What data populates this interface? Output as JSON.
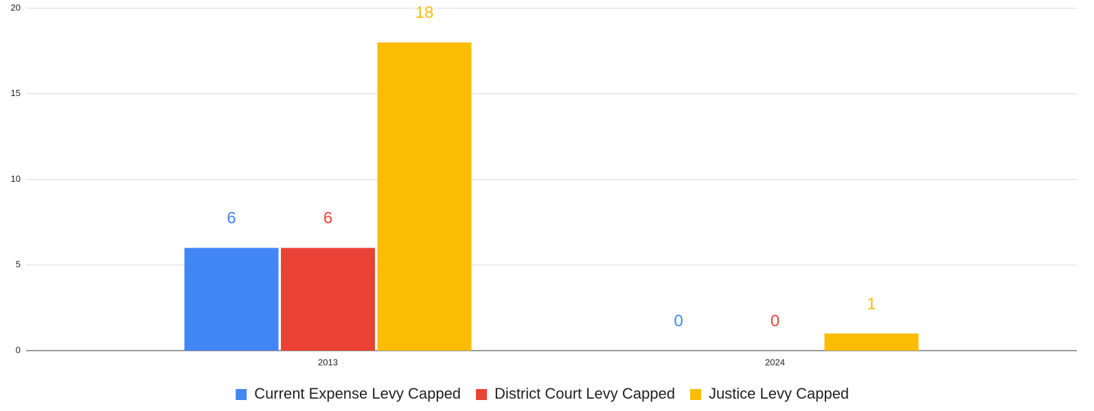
{
  "chart_data": {
    "type": "bar",
    "categories": [
      "2013",
      "2024"
    ],
    "series": [
      {
        "name": "Current Expense Levy Capped",
        "color": "#4285f4",
        "values": [
          6,
          0
        ]
      },
      {
        "name": "District Court Levy Capped",
        "color": "#ea4335",
        "values": [
          6,
          0
        ]
      },
      {
        "name": "Justice Levy Capped",
        "color": "#fbbc04",
        "values": [
          18,
          1
        ]
      }
    ],
    "ylim": [
      0,
      20
    ],
    "yticks": [
      0,
      5,
      10,
      15,
      20
    ],
    "grid": true,
    "legend": "bottom"
  }
}
